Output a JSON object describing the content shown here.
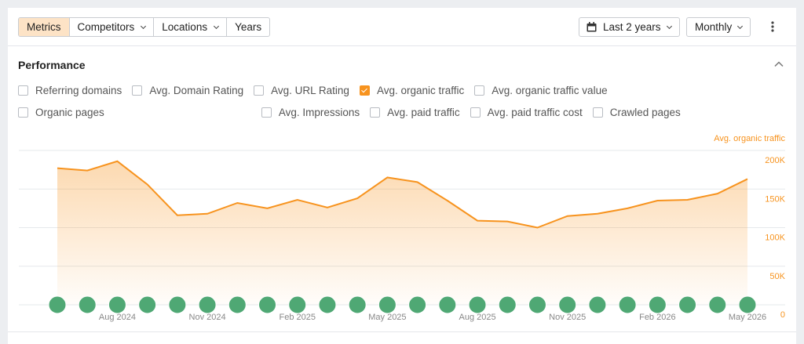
{
  "toolbar": {
    "tabs": [
      {
        "label": "Metrics",
        "active": true,
        "menu": false
      },
      {
        "label": "Competitors",
        "active": false,
        "menu": true
      },
      {
        "label": "Locations",
        "active": false,
        "menu": true
      },
      {
        "label": "Years",
        "active": false,
        "menu": false
      }
    ],
    "date_range": "Last 2 years",
    "interval": "Monthly"
  },
  "section_title": "Performance",
  "metrics": [
    {
      "label": "Referring domains",
      "checked": false
    },
    {
      "label": "Avg. Domain Rating",
      "checked": false
    },
    {
      "label": "Avg. URL Rating",
      "checked": false
    },
    {
      "label": "Avg. organic traffic",
      "checked": true
    },
    {
      "label": "Avg. organic traffic value",
      "checked": false
    },
    {
      "label": "Organic pages",
      "checked": false
    },
    {
      "label": "Avg. Impressions",
      "checked": false
    },
    {
      "label": "Avg. paid traffic",
      "checked": false
    },
    {
      "label": "Avg. paid traffic cost",
      "checked": false
    },
    {
      "label": "Crawled pages",
      "checked": false
    }
  ],
  "chart_data": {
    "type": "area",
    "categories": [
      null,
      null,
      "Aug 2024",
      null,
      null,
      "Nov 2024",
      null,
      null,
      "Feb 2025",
      null,
      null,
      "May 2025",
      null,
      null,
      "Aug 2025",
      null,
      null,
      "Nov 2025",
      null,
      null,
      "Feb 2026",
      null,
      null,
      "May 2026"
    ],
    "series": [
      {
        "name": "Avg. organic traffic",
        "color": "#f7931e",
        "values": [
          177000,
          174000,
          186000,
          156000,
          116000,
          118000,
          132000,
          125000,
          136000,
          126000,
          138000,
          165000,
          159000,
          135000,
          109000,
          108000,
          100000,
          115000,
          118000,
          125000,
          135000,
          136000,
          144000,
          163000
        ]
      }
    ],
    "ylim": [
      0,
      200000
    ],
    "yticks": [
      0,
      {
        "value": 50000,
        "label": "50K"
      },
      {
        "value": 100000,
        "label": "100K"
      },
      {
        "value": 150000,
        "label": "150K"
      },
      {
        "value": 200000,
        "label": "200K"
      }
    ],
    "grid": true
  }
}
